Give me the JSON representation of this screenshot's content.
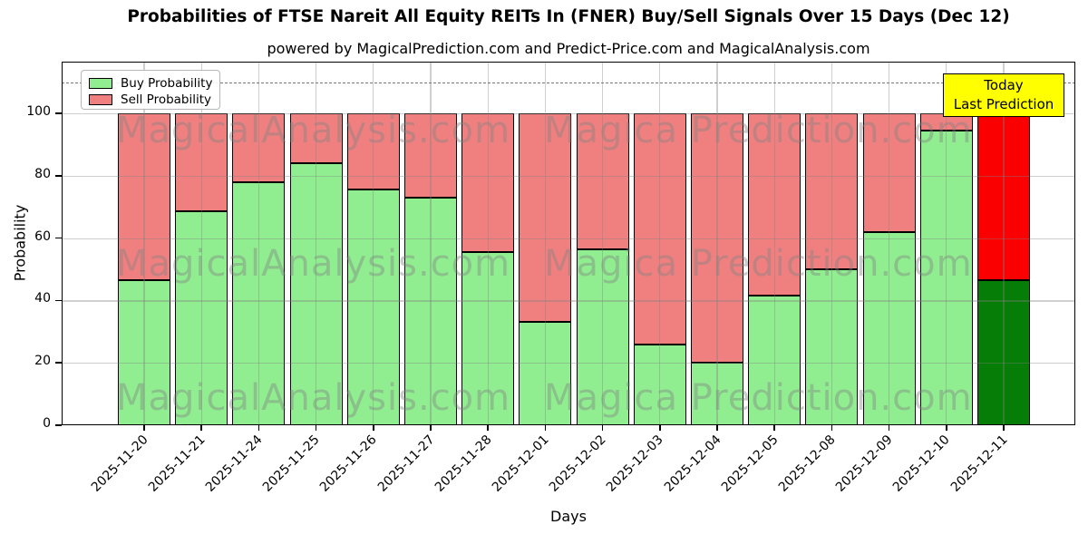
{
  "title": "Probabilities of FTSE Nareit All Equity REITs In (FNER) Buy/Sell Signals Over 15 Days (Dec 12)",
  "subtitle": "powered by MagicalPrediction.com and Predict-Price.com and MagicalAnalysis.com",
  "axes": {
    "xlabel": "Days",
    "ylabel": "Probability",
    "yticks": [
      0,
      20,
      40,
      60,
      80,
      100
    ],
    "ylim": [
      0,
      116.5
    ],
    "dashed_line_y": 110,
    "grid": true
  },
  "legend": {
    "position": "upper left",
    "items": [
      {
        "label": "Buy Probability",
        "color": "#90ee90"
      },
      {
        "label": "Sell Probability",
        "color": "#f08080"
      }
    ]
  },
  "annotation": {
    "line1": "Today",
    "line2": "Last Prediction",
    "bg_color": "#ffff00"
  },
  "watermark": {
    "left_text": "MagicalAnalysis.com",
    "right_text": "Magica Prediction.com"
  },
  "colors": {
    "buy": "#90ee90",
    "sell": "#f08080",
    "buy_today": "#067d06",
    "sell_today": "#fb0000",
    "bar_edge": "#000000",
    "dashed_line": "#767676"
  },
  "chart_data": {
    "type": "bar",
    "stacked": true,
    "title": "Probabilities of FTSE Nareit All Equity REITs In (FNER) Buy/Sell Signals Over 15 Days (Dec 12)",
    "xlabel": "Days",
    "ylabel": "Probability",
    "ylim": [
      0,
      116.5
    ],
    "grid": true,
    "legend_position": "upper left",
    "categories": [
      "2025-11-20",
      "2025-11-21",
      "2025-11-24",
      "2025-11-25",
      "2025-11-26",
      "2025-11-27",
      "2025-11-28",
      "2025-12-01",
      "2025-12-02",
      "2025-12-03",
      "2025-12-04",
      "2025-12-05",
      "2025-12-08",
      "2025-12-09",
      "2025-12-10",
      "2025-12-11"
    ],
    "series": [
      {
        "name": "Buy Probability",
        "values": [
          46.5,
          68.5,
          78,
          84,
          75.5,
          73,
          55.5,
          33,
          56.5,
          26,
          20,
          41.5,
          50,
          62,
          94.5,
          46.5
        ]
      },
      {
        "name": "Sell Probability",
        "values": [
          53.5,
          31.5,
          22,
          16,
          24.5,
          27,
          44.5,
          67,
          43.5,
          74,
          80,
          58.5,
          50,
          38,
          5.5,
          53.5
        ]
      }
    ],
    "today_index": 15,
    "threshold_dashed_line": 110
  }
}
